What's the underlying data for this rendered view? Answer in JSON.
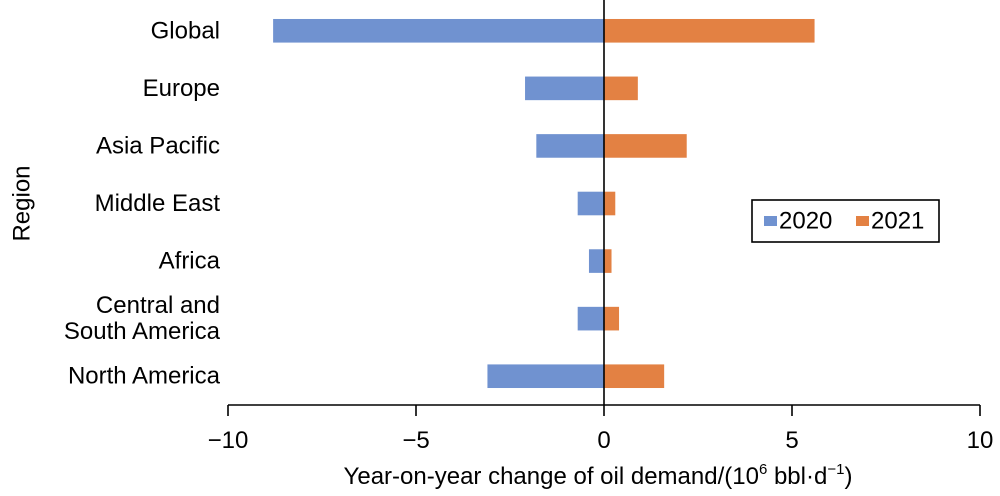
{
  "chart_data": {
    "type": "bar",
    "orientation": "horizontal",
    "categories": [
      "Global",
      "Europe",
      "Asia Pacific",
      "Middle East",
      "Africa",
      "Central and South America",
      "North America"
    ],
    "category_display": [
      [
        "Global"
      ],
      [
        "Europe"
      ],
      [
        "Asia Pacific"
      ],
      [
        "Middle East"
      ],
      [
        "Africa"
      ],
      [
        "Central and",
        "South America"
      ],
      [
        "North America"
      ]
    ],
    "series": [
      {
        "name": "2020",
        "color": "#7092d0",
        "values": [
          -8.8,
          -2.1,
          -1.8,
          -0.7,
          -0.4,
          -0.7,
          -3.1
        ]
      },
      {
        "name": "2021",
        "color": "#e38143",
        "values": [
          5.6,
          0.9,
          2.2,
          0.3,
          0.2,
          0.4,
          1.6
        ]
      }
    ],
    "xlim": [
      -10,
      10
    ],
    "xticks": [
      -10,
      -5,
      0,
      5,
      10
    ],
    "xtick_labels": [
      "−10",
      "−5",
      "0",
      "5",
      "10"
    ],
    "xlabel": "Year-on-year change of oil demand/(10",
    "xlabel_sup": "6",
    "xlabel_unit": " bbl·d",
    "xlabel_unit_sup": "−1",
    "xlabel_close": ")",
    "ylabel": "Region",
    "grid": false,
    "legend_position": "right"
  }
}
